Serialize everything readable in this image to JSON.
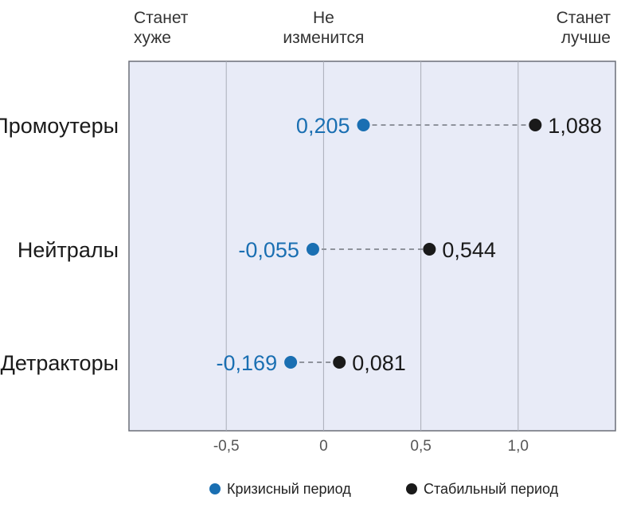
{
  "colors": {
    "crisis": "#1a6fb2",
    "stable": "#1a1a1a",
    "plot_bg": "#e8ebf7",
    "grid": "#a9adb8",
    "connector": "#8f939c"
  },
  "chart_data": {
    "type": "dot",
    "orientation": "horizontal",
    "xlim": [
      -1.0,
      1.5
    ],
    "x_ticks": [
      -0.5,
      0,
      0.5,
      1.0
    ],
    "x_tick_labels": [
      "-0,5",
      "0",
      "0,5",
      "1,0"
    ],
    "grid": true,
    "top_labels": [
      {
        "x": -1.0,
        "lines": [
          "Станет",
          "хуже"
        ],
        "align": "start"
      },
      {
        "x": 0,
        "lines": [
          "Не",
          "изменится"
        ],
        "align": "middle"
      },
      {
        "x": 1.5,
        "lines": [
          "Станет",
          "лучше"
        ],
        "align": "end"
      }
    ],
    "categories": [
      "Промоутеры",
      "Нейтралы",
      "Детракторы"
    ],
    "series": [
      {
        "name": "Кризисный период",
        "values": [
          0.205,
          -0.055,
          -0.169
        ],
        "labels": [
          "0,205",
          "-0,055",
          "-0,169"
        ]
      },
      {
        "name": "Стабильный период",
        "values": [
          1.088,
          0.544,
          0.081
        ],
        "labels": [
          "1,088",
          "0,544",
          "0,081"
        ]
      }
    ],
    "legend_position": "bottom"
  }
}
